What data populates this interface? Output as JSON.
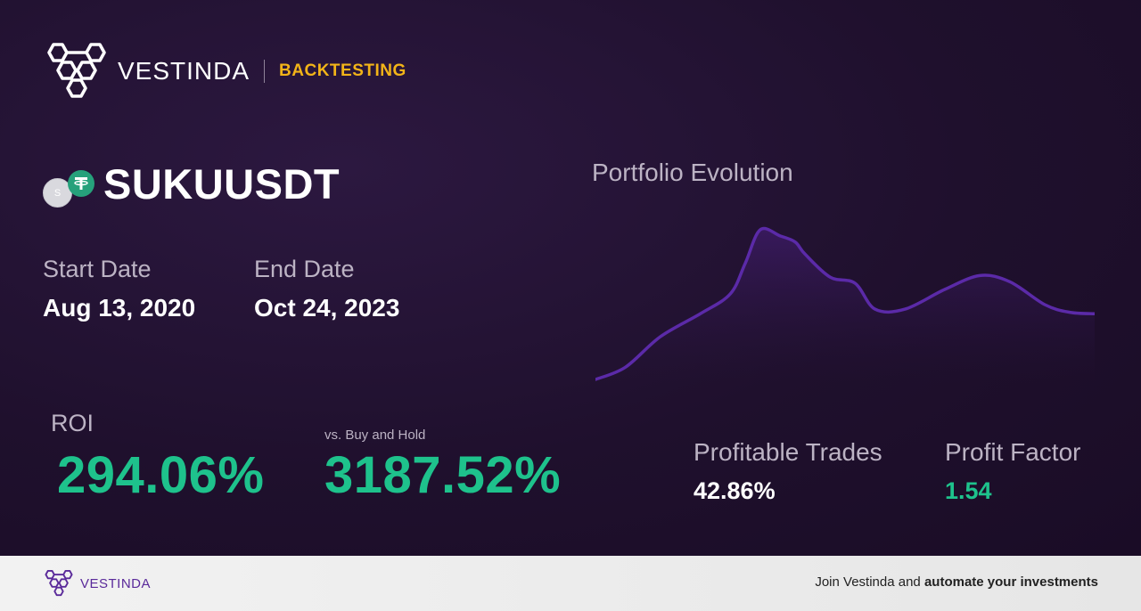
{
  "header": {
    "brand": "VESTINDA",
    "section": "BACKTESTING"
  },
  "pair": {
    "name": "SUKUUSDT",
    "base_icon_letter": "S",
    "quote_icon": "tether-icon"
  },
  "dates": {
    "start_label": "Start Date",
    "start_value": "Aug 13, 2020",
    "end_label": "End Date",
    "end_value": "Oct 24, 2023"
  },
  "roi": {
    "label": "ROI",
    "value": "294.06%"
  },
  "buy_hold": {
    "label": "vs. Buy and Hold",
    "value": "3187.52%"
  },
  "chart": {
    "title": "Portfolio Evolution"
  },
  "chart_data": {
    "type": "area",
    "title": "Portfolio Evolution",
    "xlabel": "",
    "ylabel": "",
    "grid": false,
    "legend": "none",
    "line_color": "#5b2aa8",
    "x": [
      0,
      0.06,
      0.13,
      0.21,
      0.27,
      0.3,
      0.33,
      0.37,
      0.4,
      0.42,
      0.47,
      0.52,
      0.56,
      0.62,
      0.7,
      0.77,
      0.83,
      0.9,
      0.95,
      1.0
    ],
    "values": [
      0.0,
      0.08,
      0.28,
      0.43,
      0.56,
      0.76,
      0.98,
      0.94,
      0.9,
      0.82,
      0.67,
      0.63,
      0.46,
      0.46,
      0.59,
      0.68,
      0.64,
      0.49,
      0.44,
      0.43
    ],
    "ylim": [
      0,
      1.05
    ]
  },
  "stats": {
    "profitable_trades_label": "Profitable Trades",
    "profitable_trades_value": "42.86%",
    "profit_factor_label": "Profit Factor",
    "profit_factor_value": "1.54"
  },
  "colors": {
    "accent_yellow": "#f2b418",
    "positive_green": "#1ec28c",
    "brand_purple": "#5a2a9a"
  },
  "footer": {
    "brand": "VESTINDA",
    "cta_prefix": "Join Vestinda and ",
    "cta_bold": "automate your investments"
  }
}
